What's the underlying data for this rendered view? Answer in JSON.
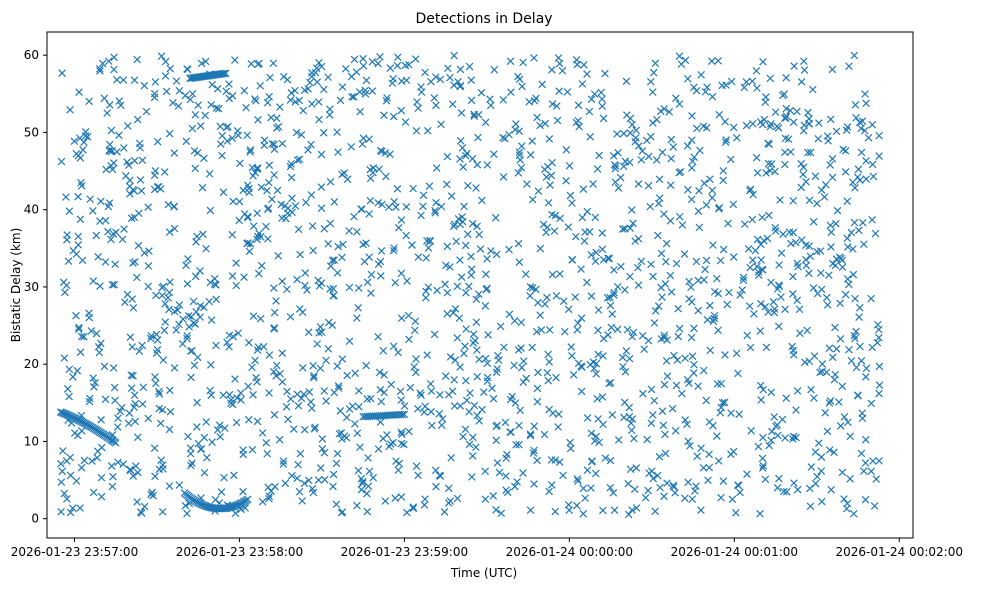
{
  "chart_data": {
    "type": "scatter",
    "title": "Detections in Delay",
    "xlabel": "Time (UTC)",
    "ylabel": "Bistatic Delay (km)",
    "marker": "x",
    "color": "#1f77b4",
    "grid": false,
    "legend": "none",
    "xlim": [
      "2026-01-23 23:56:50",
      "2026-01-24 00:02:05"
    ],
    "ylim": [
      -2.5,
      63
    ],
    "x_ticks": [
      "2026-01-23 23:57:00",
      "2026-01-23 23:58:00",
      "2026-01-23 23:59:00",
      "2026-01-24 00:00:00",
      "2026-01-24 00:01:00",
      "2026-01-24 00:02:00"
    ],
    "y_ticks": [
      0,
      10,
      20,
      30,
      40,
      50,
      60
    ],
    "time_range": [
      "2026-01-23 23:56:55",
      "2026-01-24 00:01:53"
    ],
    "delay_range": [
      0.5,
      60
    ],
    "approx_point_count": 1900
  }
}
